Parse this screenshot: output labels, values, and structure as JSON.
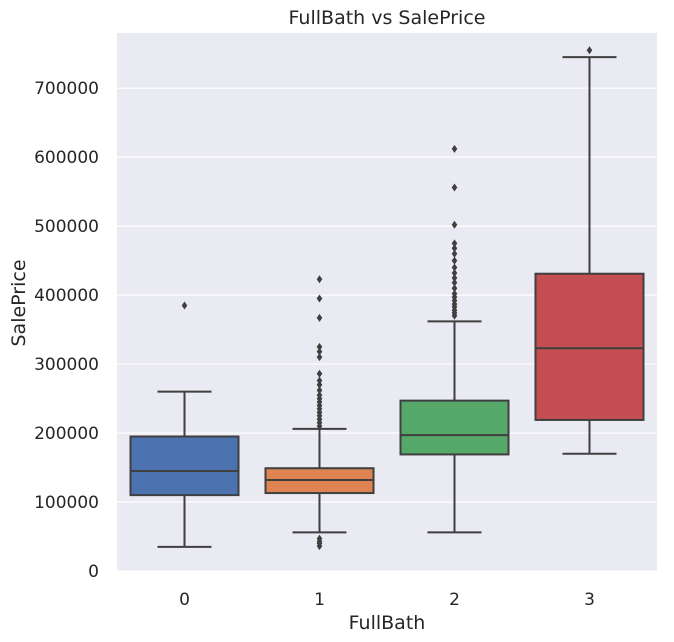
{
  "chart_data": {
    "type": "box",
    "title": "FullBath vs SalePrice",
    "xlabel": "FullBath",
    "ylabel": "SalePrice",
    "categories": [
      "0",
      "1",
      "2",
      "3"
    ],
    "ylim": [
      0,
      780000
    ],
    "yticks": [
      0,
      100000,
      200000,
      300000,
      400000,
      500000,
      600000,
      700000
    ],
    "ytick_labels": [
      "0",
      "100000",
      "200000",
      "300000",
      "400000",
      "500000",
      "600000",
      "700000"
    ],
    "grid": true,
    "colors": [
      "#4c72b0",
      "#dd8452",
      "#55a868",
      "#c44e52"
    ],
    "boxes": [
      {
        "category": "0",
        "whisker_low": 35000,
        "q1": 110000,
        "median": 145000,
        "q3": 195000,
        "whisker_high": 260000,
        "outliers": [
          385000
        ]
      },
      {
        "category": "1",
        "whisker_low": 56000,
        "q1": 113000,
        "median": 132000,
        "q3": 149000,
        "whisker_high": 206000,
        "outliers": [
          36000,
          40000,
          43000,
          47000,
          210000,
          215000,
          220000,
          225000,
          230000,
          235000,
          240000,
          245000,
          250000,
          255000,
          262000,
          270000,
          276000,
          286000,
          310000,
          318000,
          325000,
          367000,
          395000,
          423000
        ]
      },
      {
        "category": "2",
        "whisker_low": 56000,
        "q1": 169000,
        "median": 197000,
        "q3": 247000,
        "whisker_high": 362000,
        "outliers": [
          370000,
          374000,
          378000,
          383000,
          387000,
          392000,
          397000,
          402000,
          410000,
          418000,
          425000,
          432000,
          440000,
          450000,
          460000,
          468000,
          475000,
          502000,
          556000,
          612000
        ]
      },
      {
        "category": "3",
        "whisker_low": 170000,
        "q1": 219000,
        "median": 323000,
        "q3": 431000,
        "whisker_high": 745000,
        "outliers": [
          755000
        ]
      }
    ]
  }
}
